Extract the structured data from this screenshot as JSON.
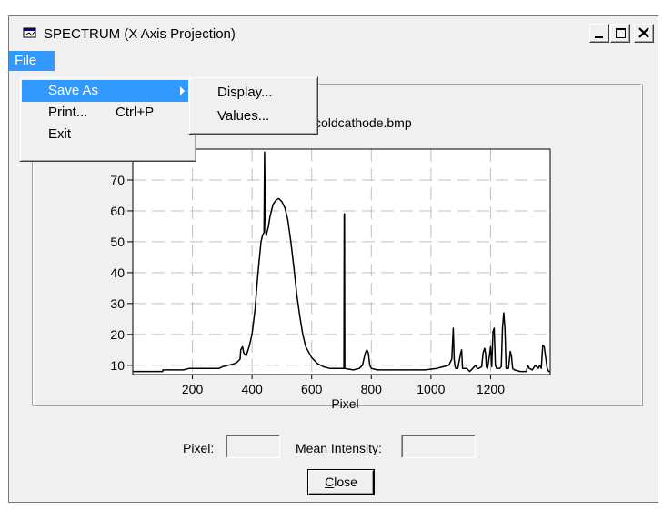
{
  "window": {
    "title": "SPECTRUM (X Axis Projection)",
    "icon": "window-app-icon",
    "controls": {
      "minimize": "minimize-icon",
      "maximize": "maximize-icon",
      "close": "close-icon"
    }
  },
  "menubar": {
    "file_label": "File"
  },
  "file_menu": {
    "items": [
      {
        "label": "Save As",
        "shortcut": "",
        "submenu": true
      },
      {
        "label": "Print...",
        "shortcut": "Ctrl+P"
      },
      {
        "label": "Exit",
        "shortcut": ""
      }
    ]
  },
  "save_as_submenu": {
    "items": [
      {
        "label": "Display..."
      },
      {
        "label": "Values..."
      }
    ]
  },
  "colors": {
    "highlight": "#3399ff",
    "face": "#f0f0f0"
  },
  "chart_data": {
    "type": "line",
    "title": "coldcathode.bmp",
    "xlabel": "Pixel",
    "ylabel": "",
    "xlim": [
      0,
      1400
    ],
    "ylim": [
      7,
      80
    ],
    "x_ticks": [
      200,
      400,
      600,
      800,
      1000,
      1200
    ],
    "x_tick_labels": [
      "200",
      "400",
      "600",
      "800",
      "1000",
      "1200"
    ],
    "y_ticks": [
      10,
      20,
      30,
      40,
      50,
      60,
      70
    ],
    "y_tick_labels": [
      "10",
      "20",
      "30",
      "40",
      "50",
      "60",
      "70"
    ],
    "grid": true,
    "series": [
      {
        "x": [
          0,
          100,
          101,
          170,
          190,
          290,
          300,
          320,
          340,
          350,
          360,
          362,
          368,
          372,
          380,
          390,
          400,
          410,
          420,
          430,
          435,
          440,
          442,
          444,
          446,
          448,
          450,
          455,
          460,
          470,
          480,
          490,
          500,
          510,
          520,
          530,
          540,
          550,
          560,
          570,
          580,
          600,
          620,
          640,
          660,
          680,
          700,
          708,
          709,
          710,
          711,
          712,
          720,
          740,
          760,
          770,
          780,
          785,
          790,
          795,
          800,
          820,
          860,
          900,
          940,
          980,
          1020,
          1040,
          1060,
          1070,
          1075,
          1078,
          1081,
          1084,
          1090,
          1100,
          1103,
          1106,
          1110,
          1120,
          1130,
          1140,
          1150,
          1155,
          1160,
          1170,
          1175,
          1180,
          1183,
          1186,
          1190,
          1196,
          1200,
          1204,
          1208,
          1212,
          1216,
          1220,
          1230,
          1236,
          1240,
          1244,
          1248,
          1252,
          1260,
          1266,
          1270,
          1274,
          1280,
          1300,
          1320,
          1325,
          1330,
          1340,
          1350,
          1360,
          1365,
          1370,
          1375,
          1380,
          1390,
          1395,
          1400
        ],
        "y": [
          8,
          8,
          8.5,
          8.5,
          9,
          9,
          9.5,
          10,
          10.5,
          11,
          12,
          15,
          16,
          14,
          13,
          16,
          20,
          28,
          40,
          50,
          52,
          53,
          79,
          62,
          53,
          52,
          53,
          55,
          58,
          62,
          63.5,
          64,
          63,
          61,
          57,
          50,
          42,
          33,
          26,
          20,
          16,
          12.5,
          10.5,
          9.5,
          9,
          9,
          9,
          9,
          59,
          59,
          9,
          9,
          8.8,
          8.5,
          9,
          10,
          14,
          15,
          14,
          10,
          9,
          8.5,
          8.5,
          8.5,
          8.5,
          8.5,
          9,
          9.5,
          10,
          12,
          22,
          12,
          9.5,
          9,
          9,
          14,
          15,
          9,
          9,
          9,
          8,
          9,
          10,
          9,
          9,
          9.5,
          14,
          15.5,
          14,
          9.5,
          9,
          13,
          16,
          9.5,
          21,
          22,
          10,
          9,
          9,
          9.5,
          22,
          27,
          22,
          9,
          9,
          14.5,
          13,
          9,
          8.5,
          8,
          8,
          10,
          9,
          8.5,
          10,
          9,
          10,
          9,
          16.5,
          16,
          9,
          8,
          8
        ]
      }
    ]
  },
  "fields": {
    "pixel_label": "Pixel:",
    "pixel_value": "",
    "mean_label": "Mean Intensity:",
    "mean_value": ""
  },
  "close_button": {
    "label": "Close",
    "mnemonic": "C"
  }
}
